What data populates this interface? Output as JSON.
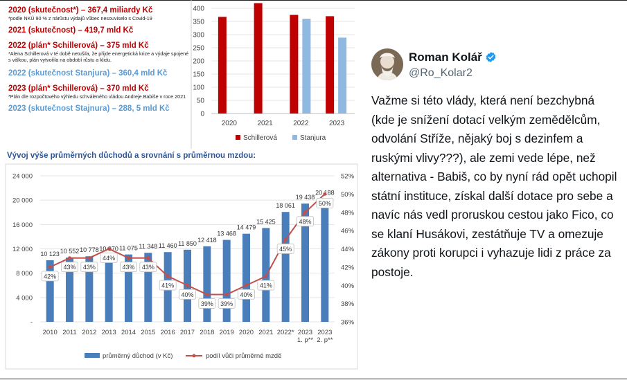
{
  "budget_list": [
    {
      "text": "2020 (skutečnost*) – 367,4 miliardy Kč",
      "color": "red",
      "note": "*podle NKÚ 90 % z nárůstu výdajů vůbec nesouviselo s Covid-19"
    },
    {
      "text": "2021 (skutečnost) – 419,7 mld Kč",
      "color": "red",
      "note": ""
    },
    {
      "text": "2022 (plán* Schillerová) – 375 mld Kč",
      "color": "red",
      "note": "*Alena Schillerová v té době netušila, že přijde energetická krize a výdaje spojené s válkou, plán vytvořila na období růstu a klidu."
    },
    {
      "text": "2022 (skutečnost Stanjura) – 360,4 mld Kč",
      "color": "blue",
      "note": ""
    },
    {
      "text": "2023 (plán* Schillerová) – 370 mld Kč",
      "color": "red",
      "note": "*Plán dle rozpočtového výhledu schváleného vládou Andreje Babiše v roce 2021"
    },
    {
      "text": "2023 (skutečnost Stajnura) – 288, 5 mld Kč",
      "color": "blue",
      "note": ""
    }
  ],
  "section_heading": "Vývoj výše průměrných důchodů a srovnání s průměrnou mzdou:",
  "chart_data": [
    {
      "type": "bar",
      "categories": [
        "2020",
        "2021",
        "2022",
        "2023"
      ],
      "series": [
        {
          "name": "Schillerová",
          "color": "#c00000",
          "values": [
            367.4,
            419.7,
            375,
            370
          ]
        },
        {
          "name": "Stanjura",
          "color": "#8fb9e0",
          "values": [
            null,
            null,
            360.4,
            288.5
          ]
        }
      ],
      "ylim": [
        0,
        400
      ],
      "yticks": [
        "0",
        "50",
        "100",
        "150",
        "200",
        "250",
        "300",
        "350",
        "400"
      ],
      "grid": true,
      "legend_position": "bottom"
    },
    {
      "type": "bar+line",
      "categories": [
        "2010",
        "2011",
        "2012",
        "2013",
        "2014",
        "2015",
        "2016",
        "2017",
        "2018",
        "2019",
        "2020",
        "2021",
        "2022*",
        "2023\n1. p**",
        "2023\n2. p**"
      ],
      "series": [
        {
          "name": "průměrný důchod (v Kč)",
          "type": "bar",
          "axis": "left",
          "color": "#4a7ebb",
          "values": [
            10123,
            10552,
            10778,
            10970,
            11075,
            11348,
            11460,
            11850,
            12418,
            13468,
            14479,
            15425,
            18061,
            19438,
            20188
          ],
          "labels": [
            "10 123",
            "10 552",
            "10 778",
            "10 970",
            "11 075",
            "11 348",
            "11 460",
            "11 850",
            "12 418",
            "13 468",
            "14 479",
            "15 425",
            "18 061",
            "19 438",
            "20 188"
          ]
        },
        {
          "name": "podíl vůči průměrné mzdě",
          "type": "line",
          "axis": "right",
          "color": "#c0504d",
          "values": [
            42,
            43,
            43,
            44,
            43,
            43,
            41,
            40,
            39,
            39,
            40,
            41,
            45,
            48,
            50
          ],
          "labels": [
            "42%",
            "43%",
            "43%",
            "44%",
            "43%",
            "43%",
            "41%",
            "40%",
            "39%",
            "39%",
            "40%",
            "41%",
            "45%",
            "48%",
            "50%"
          ]
        }
      ],
      "ylim_left": [
        0,
        24000
      ],
      "ylim_right": [
        36,
        52
      ],
      "yticks_left": [
        "-",
        "4 000",
        "8 000",
        "12 000",
        "16 000",
        "20 000",
        "24 000"
      ],
      "yticks_right": [
        "36%",
        "38%",
        "40%",
        "42%",
        "44%",
        "46%",
        "48%",
        "50%",
        "52%"
      ],
      "grid": true,
      "legend_position": "bottom"
    }
  ],
  "tweet": {
    "author_name": "Roman Kolář",
    "handle": "@Ro_Kolar2",
    "text": "Važme si této vlády, která není bezchybná (kde je snížení dotací velkým zemědělcům, odvolání Stříže, nějaký boj s dezinfem a ruskými vlivy???), ale zemi vede lépe, než alternativa - Babiš, co by nyní rád opět uchopil státní instituce, získal další dotace pro sebe a navíc nás vedl proruskou cestou jako Fico, co se klaní Husákovi, zestátňuje TV a omezuje zákony proti korupci i vyhazuje lidi z práce za postoje.",
    "verified_color": "#1d9bf0"
  }
}
